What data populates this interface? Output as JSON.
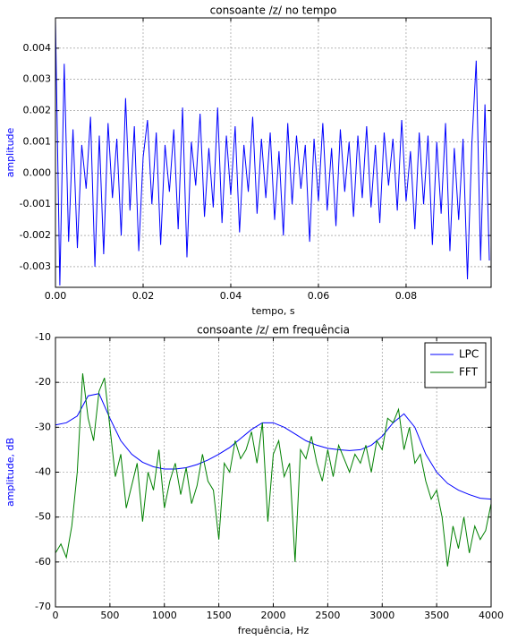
{
  "chart_data": [
    {
      "type": "line",
      "title": "consoante /z/ no tempo",
      "xlabel": "tempo, s",
      "ylabel": "amplitude",
      "ylabel_color": "#0000ff",
      "grid": true,
      "xlim": [
        0,
        0.0994
      ],
      "ylim": [
        -0.00366,
        0.00497
      ],
      "xticks": [
        {
          "value": 0,
          "label": "0.00"
        },
        0.02,
        0.04,
        0.06,
        0.08
      ],
      "yticks": [
        -0.003,
        -0.002,
        -0.001,
        {
          "value": 0,
          "label": "0.000"
        },
        0.001,
        0.002,
        0.003,
        0.004
      ],
      "x": [
        0,
        0.001,
        0.002,
        0.003,
        0.004,
        0.005,
        0.006,
        0.007,
        0.008,
        0.009,
        0.01,
        0.011,
        0.012,
        0.013,
        0.014,
        0.015,
        0.016,
        0.017,
        0.018,
        0.019,
        0.02,
        0.021,
        0.022,
        0.023,
        0.024,
        0.025,
        0.026,
        0.027,
        0.028,
        0.029,
        0.03,
        0.031,
        0.032,
        0.033,
        0.034,
        0.035,
        0.036,
        0.037,
        0.038,
        0.039,
        0.04,
        0.041,
        0.042,
        0.043,
        0.044,
        0.045,
        0.046,
        0.047,
        0.048,
        0.049,
        0.05,
        0.051,
        0.052,
        0.053,
        0.054,
        0.055,
        0.056,
        0.057,
        0.058,
        0.059,
        0.06,
        0.061,
        0.062,
        0.063,
        0.064,
        0.065,
        0.066,
        0.067,
        0.068,
        0.069,
        0.07,
        0.071,
        0.072,
        0.073,
        0.074,
        0.075,
        0.076,
        0.077,
        0.078,
        0.079,
        0.08,
        0.081,
        0.082,
        0.083,
        0.084,
        0.085,
        0.086,
        0.087,
        0.088,
        0.089,
        0.09,
        0.091,
        0.092,
        0.093,
        0.094,
        0.095,
        0.096,
        0.097,
        0.098,
        0.099
      ],
      "series": [
        {
          "color": "#0000ff",
          "values": [
            0.0049,
            -0.0036,
            0.0035,
            -0.0022,
            0.0014,
            -0.0024,
            0.0009,
            -0.0005,
            0.0018,
            -0.003,
            0.0012,
            -0.0026,
            0.0016,
            -0.0008,
            0.0011,
            -0.002,
            0.0024,
            -0.0012,
            0.0015,
            -0.0025,
            0.0005,
            0.0017,
            -0.001,
            0.0013,
            -0.0023,
            0.0009,
            -0.0006,
            0.0014,
            -0.0018,
            0.0021,
            -0.0027,
            0.001,
            -0.0004,
            0.0019,
            -0.0014,
            0.0008,
            -0.0011,
            0.0021,
            -0.0016,
            0.0012,
            -0.0007,
            0.0015,
            -0.0019,
            0.0009,
            -0.0006,
            0.0018,
            -0.0013,
            0.0011,
            -0.0008,
            0.0013,
            -0.0015,
            0.0007,
            -0.002,
            0.0016,
            -0.001,
            0.0012,
            -0.0005,
            0.0009,
            -0.0022,
            0.0011,
            -0.0009,
            0.0016,
            -0.0012,
            0.0008,
            -0.0017,
            0.0014,
            -0.0006,
            0.001,
            -0.0014,
            0.0012,
            -0.0008,
            0.0015,
            -0.0011,
            0.0009,
            -0.0016,
            0.0013,
            -0.0004,
            0.0011,
            -0.0012,
            0.0017,
            -0.0009,
            0.0007,
            -0.0018,
            0.0013,
            -0.001,
            0.0012,
            -0.0023,
            0.001,
            -0.0013,
            0.0016,
            -0.0025,
            0.0008,
            -0.0015,
            0.0011,
            -0.0034,
            0.0009,
            0.0036,
            -0.0028,
            0.0022,
            -0.0028
          ]
        }
      ]
    },
    {
      "type": "line",
      "title": "consoante /z/ em frequência",
      "xlabel": "frequência, Hz",
      "ylabel": "amplitude, dB",
      "ylabel_color": "#0000ff",
      "grid": true,
      "legend": "upper right",
      "xlim": [
        0,
        4000
      ],
      "ylim": [
        -70,
        -10
      ],
      "xticks": [
        0,
        500,
        1000,
        1500,
        2000,
        2500,
        3000,
        3500,
        4000
      ],
      "yticks": [
        -70,
        -60,
        -50,
        -40,
        -30,
        -20,
        -10
      ],
      "series": [
        {
          "name": "LPC",
          "color": "#0000ff",
          "x": [
            0,
            100,
            200,
            300,
            400,
            500,
            600,
            700,
            800,
            900,
            1000,
            1100,
            1200,
            1300,
            1400,
            1500,
            1600,
            1700,
            1800,
            1900,
            2000,
            2100,
            2200,
            2300,
            2400,
            2500,
            2600,
            2700,
            2800,
            2900,
            3000,
            3100,
            3200,
            3300,
            3400,
            3500,
            3600,
            3700,
            3800,
            3900,
            4000
          ],
          "values": [
            -29.5,
            -29,
            -27.5,
            -23,
            -22.5,
            -28,
            -33,
            -36,
            -37.8,
            -38.8,
            -39.3,
            -39.3,
            -39,
            -38.3,
            -37.3,
            -36,
            -34.5,
            -32.5,
            -30.5,
            -29,
            -29,
            -30,
            -31.5,
            -33,
            -34,
            -34.7,
            -35,
            -35.2,
            -35,
            -34,
            -32,
            -29,
            -27,
            -30,
            -36,
            -40,
            -42.5,
            -44,
            -45,
            -45.8,
            -46
          ]
        },
        {
          "name": "FFT",
          "color": "#008000",
          "x": [
            0,
            50,
            100,
            150,
            200,
            250,
            300,
            350,
            400,
            450,
            500,
            550,
            600,
            650,
            700,
            750,
            800,
            850,
            900,
            950,
            1000,
            1050,
            1100,
            1150,
            1200,
            1250,
            1300,
            1350,
            1400,
            1450,
            1500,
            1550,
            1600,
            1650,
            1700,
            1750,
            1800,
            1850,
            1900,
            1950,
            2000,
            2050,
            2100,
            2150,
            2200,
            2250,
            2300,
            2350,
            2400,
            2450,
            2500,
            2550,
            2600,
            2650,
            2700,
            2750,
            2800,
            2850,
            2900,
            2950,
            3000,
            3050,
            3100,
            3150,
            3200,
            3250,
            3300,
            3350,
            3400,
            3450,
            3500,
            3550,
            3600,
            3650,
            3700,
            3750,
            3800,
            3850,
            3900,
            3950,
            4000
          ],
          "values": [
            -58,
            -56,
            -59,
            -52,
            -40,
            -18,
            -28,
            -33,
            -22,
            -19,
            -30,
            -41,
            -36,
            -48,
            -43,
            -38,
            -51,
            -40,
            -44,
            -35,
            -48,
            -42,
            -38,
            -45,
            -39,
            -47,
            -43,
            -36,
            -42,
            -44,
            -55,
            -38,
            -40,
            -33,
            -37,
            -35,
            -31,
            -38,
            -29,
            -51,
            -36,
            -33,
            -41,
            -38,
            -60,
            -35,
            -37,
            -32,
            -38,
            -42,
            -35,
            -41,
            -34,
            -37,
            -40,
            -36,
            -38,
            -34,
            -40,
            -33,
            -35,
            -28,
            -29,
            -26,
            -35,
            -30,
            -38,
            -36,
            -42,
            -46,
            -44,
            -50,
            -61,
            -52,
            -57,
            -50,
            -58,
            -52,
            -55,
            -53,
            -47
          ]
        }
      ]
    }
  ]
}
